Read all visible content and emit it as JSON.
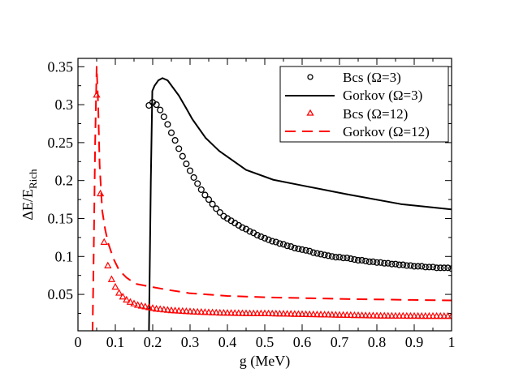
{
  "chart_data": {
    "type": "line",
    "title": "",
    "xlabel": "g (MeV)",
    "ylabel_main": "ΔE/E",
    "ylabel_sub": "Rich",
    "xlim": [
      0,
      1
    ],
    "ylim": [
      0.002,
      0.361
    ],
    "grid": false,
    "legend_placement": "top-right",
    "x_ticks": [
      0,
      0.1,
      0.2,
      0.3,
      0.4,
      0.5,
      0.6,
      0.7,
      0.8,
      0.9,
      1
    ],
    "x_tick_labels": [
      "0",
      "0.1",
      "0.2",
      "0.3",
      "0.4",
      "0.5",
      "0.6",
      "0.7",
      "0.8",
      "0.9",
      "1"
    ],
    "y_ticks": [
      0.05,
      0.1,
      0.15,
      0.2,
      0.25,
      0.3,
      0.35
    ],
    "y_tick_labels": [
      "0.05",
      "0.1",
      "0.15",
      "0.2",
      "0.25",
      "0.3",
      "0.35"
    ],
    "series": [
      {
        "name": "Bcs (Ω=3)",
        "style": "circle-markers",
        "color": "#000000",
        "x_start": 0.19,
        "x_step": 0.01,
        "y": [
          0.299,
          0.303,
          0.3,
          0.293,
          0.284,
          0.274,
          0.263,
          0.253,
          0.242,
          0.232,
          0.222,
          0.213,
          0.204,
          0.196,
          0.188,
          0.181,
          0.175,
          0.169,
          0.163,
          0.158,
          0.153,
          0.15,
          0.147,
          0.144,
          0.141,
          0.138,
          0.136,
          0.133,
          0.131,
          0.128,
          0.126,
          0.124,
          0.122,
          0.12,
          0.119,
          0.117,
          0.116,
          0.114,
          0.113,
          0.111,
          0.11,
          0.109,
          0.108,
          0.107,
          0.105,
          0.104,
          0.103,
          0.102,
          0.101,
          0.1,
          0.099,
          0.099,
          0.098,
          0.098,
          0.097,
          0.096,
          0.095,
          0.095,
          0.094,
          0.093,
          0.093,
          0.092,
          0.092,
          0.091,
          0.091,
          0.09,
          0.09,
          0.089,
          0.089,
          0.088,
          0.088,
          0.087,
          0.087,
          0.087,
          0.086,
          0.086,
          0.086,
          0.085,
          0.085,
          0.085,
          0.085,
          0.084
        ]
      },
      {
        "name": "Gorkov (Ω=3)",
        "style": "solid-line",
        "color": "#000000",
        "points": [
          [
            0.19,
            0.0
          ],
          [
            0.195,
            0.2
          ],
          [
            0.199,
            0.318
          ],
          [
            0.205,
            0.325
          ],
          [
            0.215,
            0.332
          ],
          [
            0.226,
            0.335
          ],
          [
            0.24,
            0.332
          ],
          [
            0.255,
            0.322
          ],
          [
            0.27,
            0.312
          ],
          [
            0.29,
            0.295
          ],
          [
            0.306,
            0.281
          ],
          [
            0.342,
            0.256
          ],
          [
            0.378,
            0.239
          ],
          [
            0.45,
            0.214
          ],
          [
            0.523,
            0.201
          ],
          [
            0.595,
            0.194
          ],
          [
            0.719,
            0.182
          ],
          [
            0.864,
            0.169
          ],
          [
            1.0,
            0.162
          ]
        ]
      },
      {
        "name": "Bcs (Ω=12)",
        "style": "triangle-markers",
        "color": "#ff0000",
        "x_start": 0.05,
        "x_step": 0.01,
        "y": [
          0.313,
          0.183,
          0.119,
          0.088,
          0.07,
          0.06,
          0.052,
          0.047,
          0.043,
          0.04,
          0.038,
          0.036,
          0.035,
          0.034,
          0.033,
          0.032,
          0.031,
          0.0305,
          0.03,
          0.0295,
          0.029,
          0.0287,
          0.0284,
          0.0281,
          0.0278,
          0.0275,
          0.0272,
          0.027,
          0.0268,
          0.0266,
          0.0264,
          0.0262,
          0.026,
          0.0258,
          0.0257,
          0.0256,
          0.0255,
          0.0254,
          0.0253,
          0.0252,
          0.0251,
          0.025,
          0.025,
          0.025,
          0.025,
          0.025,
          0.0249,
          0.0248,
          0.0247,
          0.0246,
          0.0245,
          0.0244,
          0.0243,
          0.0242,
          0.0241,
          0.024,
          0.0239,
          0.0238,
          0.0237,
          0.0236,
          0.0235,
          0.0234,
          0.0233,
          0.0232,
          0.0231,
          0.023,
          0.0229,
          0.0228,
          0.0227,
          0.0226,
          0.0225,
          0.0224,
          0.0223,
          0.0222,
          0.0221,
          0.022,
          0.0219,
          0.0219,
          0.0218,
          0.0218,
          0.0217,
          0.0217,
          0.0217,
          0.0216,
          0.0216,
          0.0216,
          0.0216,
          0.0215,
          0.0215,
          0.0215,
          0.0215,
          0.0215,
          0.0215,
          0.0215,
          0.0215,
          0.0215
        ]
      },
      {
        "name": "Gorkov (Ω=12)",
        "style": "dashed-line",
        "color": "#ff0000",
        "points": [
          [
            0.039,
            0.0
          ],
          [
            0.042,
            0.1
          ],
          [
            0.046,
            0.25
          ],
          [
            0.05,
            0.35
          ],
          [
            0.054,
            0.3
          ],
          [
            0.058,
            0.22
          ],
          [
            0.065,
            0.16
          ],
          [
            0.073,
            0.135
          ],
          [
            0.081,
            0.1175
          ],
          [
            0.095,
            0.097
          ],
          [
            0.11,
            0.082
          ],
          [
            0.13,
            0.072
          ],
          [
            0.154,
            0.064
          ],
          [
            0.19,
            0.0605
          ],
          [
            0.24,
            0.056
          ],
          [
            0.298,
            0.0516
          ],
          [
            0.4,
            0.048
          ],
          [
            0.516,
            0.046
          ],
          [
            0.733,
            0.0438
          ],
          [
            1.0,
            0.042
          ]
        ]
      }
    ]
  }
}
